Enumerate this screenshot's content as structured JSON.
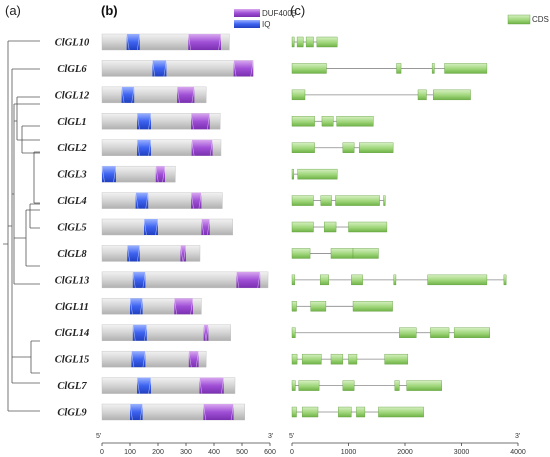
{
  "panels": {
    "a": "(a)",
    "b": "(b)",
    "c": "(c)"
  },
  "legend": {
    "duf": {
      "label": "DUF4005",
      "color": "#9b4fd1"
    },
    "iq": {
      "label": "IQ",
      "color": "#3a5df0"
    },
    "cds": {
      "label": "CDS",
      "color": "#7fc35a"
    }
  },
  "genes": [
    {
      "name": "ClGL10",
      "protein_length": 455,
      "domains": [
        {
          "type": "iq",
          "start": 88,
          "end": 135
        },
        {
          "type": "duf",
          "start": 308,
          "end": 425
        }
      ],
      "exons": [
        [
          0,
          40
        ],
        [
          90,
          200
        ],
        [
          250,
          380
        ],
        [
          440,
          800
        ]
      ]
    },
    {
      "name": "ClGL6",
      "protein_length": 540,
      "domains": [
        {
          "type": "iq",
          "start": 180,
          "end": 230
        },
        {
          "type": "duf",
          "start": 470,
          "end": 540
        }
      ],
      "exons": [
        [
          0,
          610
        ],
        [
          1850,
          1930
        ],
        [
          2480,
          2520
        ],
        [
          2700,
          3450
        ]
      ]
    },
    {
      "name": "ClGL12",
      "protein_length": 372,
      "domains": [
        {
          "type": "iq",
          "start": 70,
          "end": 115
        },
        {
          "type": "duf",
          "start": 268,
          "end": 330
        }
      ],
      "exons": [
        [
          0,
          230
        ],
        [
          2230,
          2380
        ],
        [
          2500,
          3160
        ]
      ]
    },
    {
      "name": "ClGL1",
      "protein_length": 422,
      "domains": [
        {
          "type": "iq",
          "start": 125,
          "end": 175
        },
        {
          "type": "duf",
          "start": 318,
          "end": 385
        }
      ],
      "exons": [
        [
          0,
          400
        ],
        [
          530,
          730
        ],
        [
          790,
          1440
        ]
      ]
    },
    {
      "name": "ClGL2",
      "protein_length": 425,
      "domains": [
        {
          "type": "iq",
          "start": 125,
          "end": 175
        },
        {
          "type": "duf",
          "start": 320,
          "end": 395
        }
      ],
      "exons": [
        [
          0,
          400
        ],
        [
          900,
          1100
        ],
        [
          1190,
          1790
        ]
      ]
    },
    {
      "name": "ClGL3",
      "protein_length": 262,
      "domains": [
        {
          "type": "iq",
          "start": 0,
          "end": 50
        },
        {
          "type": "duf",
          "start": 192,
          "end": 225
        }
      ],
      "exons": [
        [
          0,
          30
        ],
        [
          100,
          800
        ]
      ]
    },
    {
      "name": "ClGL4",
      "protein_length": 430,
      "domains": [
        {
          "type": "iq",
          "start": 120,
          "end": 165
        },
        {
          "type": "duf",
          "start": 318,
          "end": 355
        }
      ],
      "exons": [
        [
          0,
          380
        ],
        [
          510,
          700
        ],
        [
          770,
          1550
        ],
        [
          1620,
          1650
        ]
      ]
    },
    {
      "name": "ClGL5",
      "protein_length": 467,
      "domains": [
        {
          "type": "iq",
          "start": 150,
          "end": 200
        },
        {
          "type": "duf",
          "start": 355,
          "end": 385
        }
      ],
      "exons": [
        [
          0,
          380
        ],
        [
          570,
          780
        ],
        [
          1000,
          1680
        ]
      ]
    },
    {
      "name": "ClGL8",
      "protein_length": 350,
      "domains": [
        {
          "type": "iq",
          "start": 90,
          "end": 135
        },
        {
          "type": "duf",
          "start": 280,
          "end": 300
        }
      ],
      "exons": [
        [
          0,
          320
        ],
        [
          690,
          1080
        ],
        [
          1080,
          1530
        ]
      ]
    },
    {
      "name": "ClGL13",
      "protein_length": 593,
      "domains": [
        {
          "type": "iq",
          "start": 110,
          "end": 155
        },
        {
          "type": "duf",
          "start": 480,
          "end": 565
        }
      ],
      "exons": [
        [
          0,
          50
        ],
        [
          500,
          650
        ],
        [
          1050,
          1250
        ],
        [
          1800,
          1840
        ],
        [
          2400,
          3450
        ],
        [
          3750,
          3790
        ]
      ]
    },
    {
      "name": "ClGL11",
      "protein_length": 355,
      "domains": [
        {
          "type": "iq",
          "start": 100,
          "end": 145
        },
        {
          "type": "duf",
          "start": 258,
          "end": 325
        }
      ],
      "exons": [
        [
          0,
          80
        ],
        [
          330,
          600
        ],
        [
          1080,
          1780
        ]
      ]
    },
    {
      "name": "ClGL14",
      "protein_length": 460,
      "domains": [
        {
          "type": "iq",
          "start": 110,
          "end": 160
        },
        {
          "type": "duf",
          "start": 363,
          "end": 380
        }
      ],
      "exons": [
        [
          0,
          60
        ],
        [
          1900,
          2200
        ],
        [
          2450,
          2780
        ],
        [
          2870,
          3500
        ]
      ]
    },
    {
      "name": "ClGL15",
      "protein_length": 372,
      "domains": [
        {
          "type": "iq",
          "start": 105,
          "end": 155
        },
        {
          "type": "duf",
          "start": 310,
          "end": 345
        }
      ],
      "exons": [
        [
          0,
          90
        ],
        [
          180,
          520
        ],
        [
          690,
          900
        ],
        [
          1000,
          1150
        ],
        [
          1640,
          2050
        ]
      ]
    },
    {
      "name": "ClGL7",
      "protein_length": 475,
      "domains": [
        {
          "type": "iq",
          "start": 125,
          "end": 175
        },
        {
          "type": "duf",
          "start": 348,
          "end": 435
        }
      ],
      "exons": [
        [
          0,
          60
        ],
        [
          120,
          480
        ],
        [
          900,
          1100
        ],
        [
          1820,
          1900
        ],
        [
          2030,
          2650
        ]
      ]
    },
    {
      "name": "ClGL9",
      "protein_length": 510,
      "domains": [
        {
          "type": "iq",
          "start": 100,
          "end": 145
        },
        {
          "type": "duf",
          "start": 362,
          "end": 470
        }
      ],
      "exons": [
        [
          0,
          80
        ],
        [
          180,
          460
        ],
        [
          820,
          1050
        ],
        [
          1140,
          1290
        ],
        [
          1530,
          2330
        ]
      ]
    }
  ],
  "protein_axis": {
    "start_label": "5'",
    "end_label": "3'",
    "ticks": [
      "0",
      "100",
      "200",
      "300",
      "400",
      "500",
      "600"
    ],
    "max": 600
  },
  "gene_axis": {
    "start_label": "5'",
    "end_label": "3'",
    "ticks": [
      "0",
      "1000",
      "2000",
      "3000",
      "4000"
    ],
    "max": 4000
  }
}
